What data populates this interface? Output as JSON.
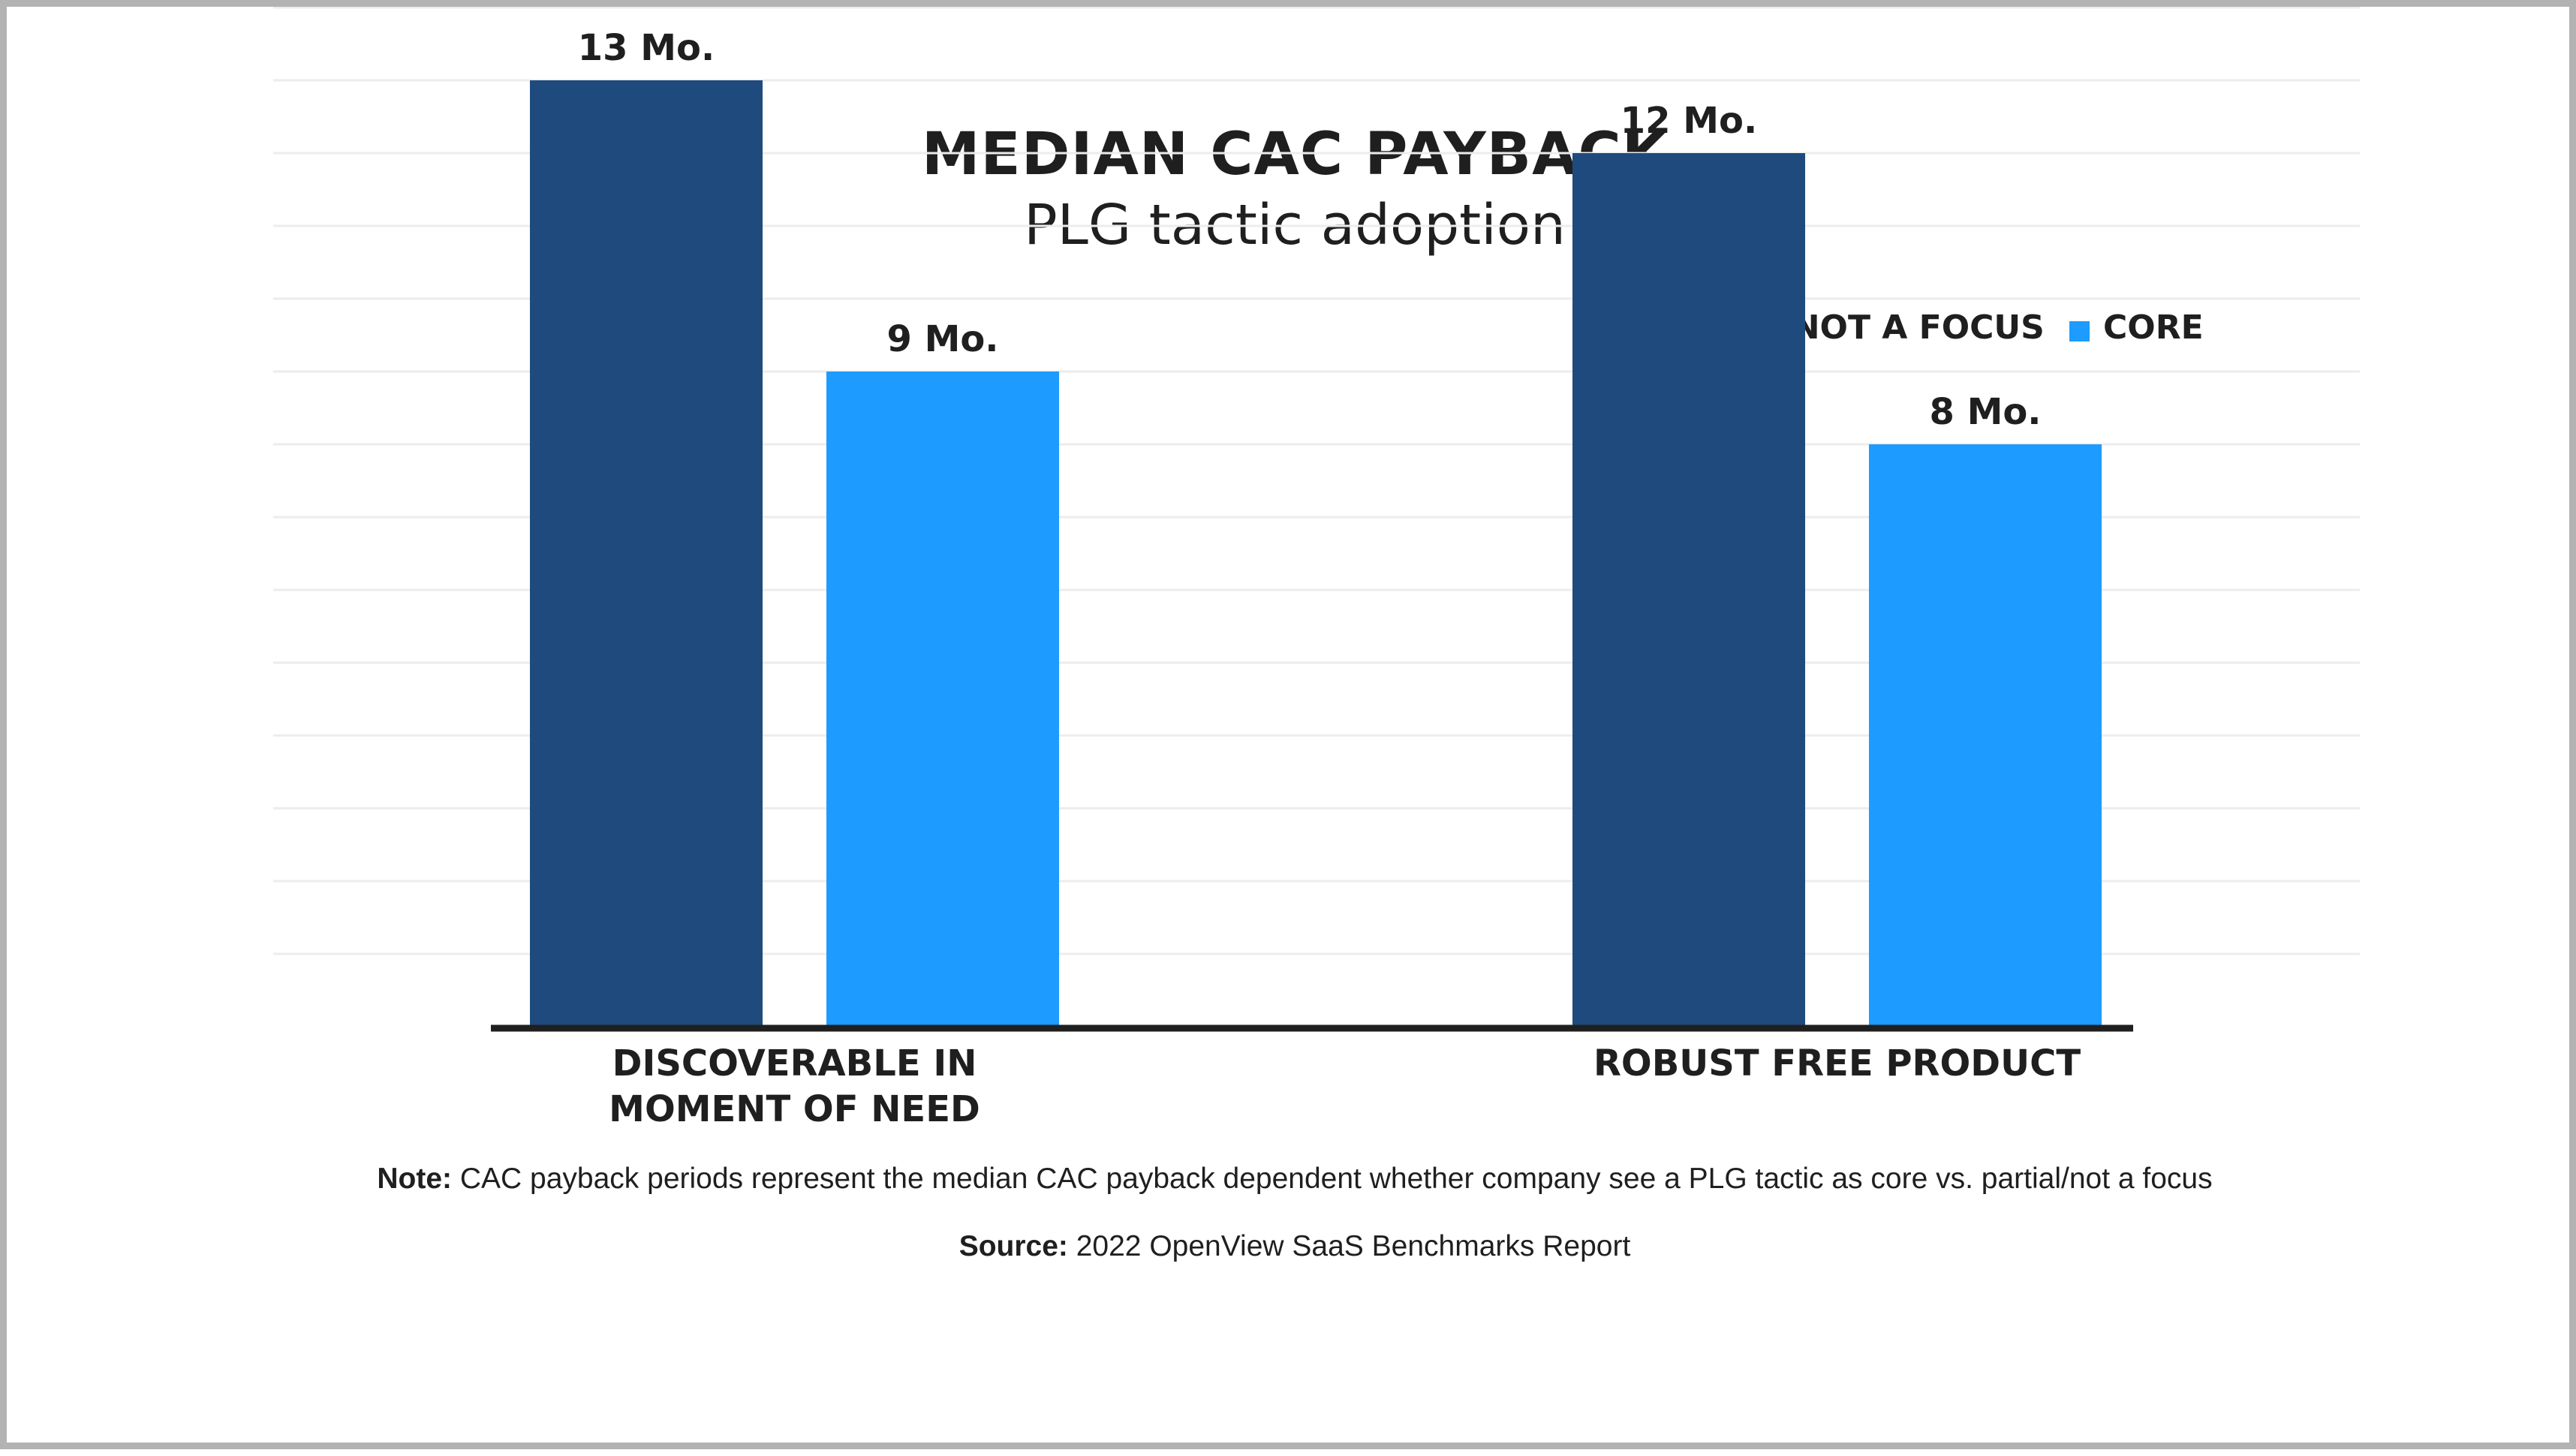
{
  "chart_data": {
    "type": "bar",
    "title": "MEDIAN CAC PAYBACK",
    "subtitle": "PLG tactic adoption",
    "categories": [
      "DISCOVERABLE IN\nMOMENT OF NEED",
      "ROBUST FREE PRODUCT"
    ],
    "series": [
      {
        "name": "PARTIAL/NOT A FOCUS",
        "values": [
          13,
          12
        ],
        "labels": [
          "13 Mo.",
          "12 Mo."
        ],
        "color": "#1f4a7e"
      },
      {
        "name": "CORE",
        "values": [
          9,
          8
        ],
        "labels": [
          "9 Mo.",
          "8 Mo."
        ],
        "color": "#1e9bff"
      }
    ],
    "ylim": [
      0,
      18
    ],
    "grid": true,
    "legend_position": "top-right"
  },
  "footer": {
    "note_label": "Note:",
    "note_text": " CAC payback periods represent the median CAC payback dependent whether company see a PLG tactic as core vs. partial/not a focus",
    "source_label": "Source:",
    "source_text": " 2022 OpenView SaaS Benchmarks Report"
  },
  "colors": {
    "grid": "#ececec",
    "axis": "#1f1f1f",
    "text": "#1f1f1f"
  }
}
